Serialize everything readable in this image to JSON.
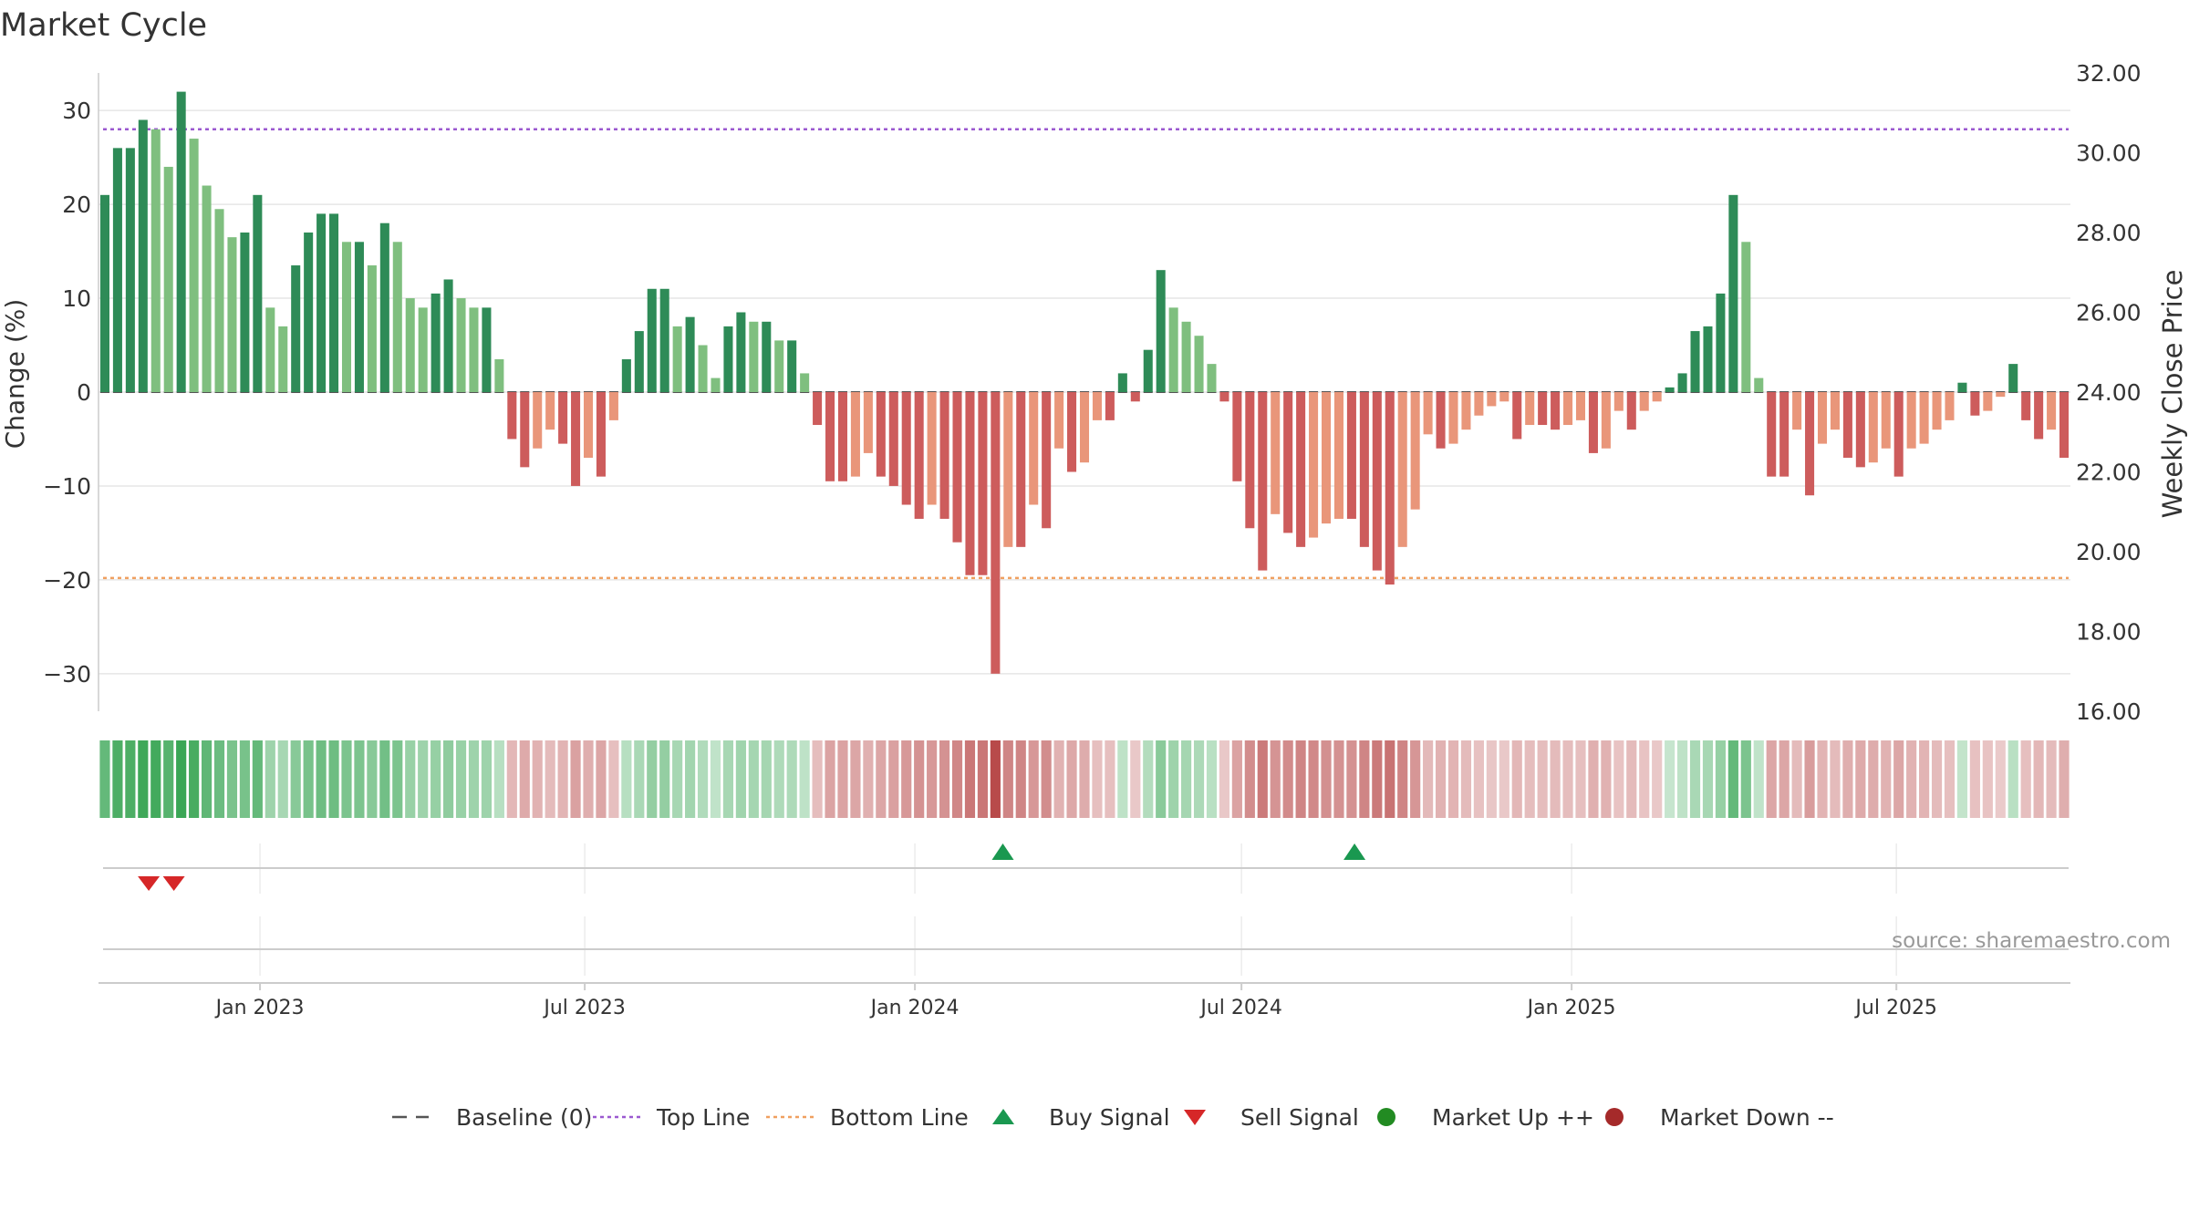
{
  "title": "Market Cycle",
  "source": "source: sharemaestro.com",
  "chart_data": {
    "type": "bar",
    "ylabel": "Change (%)",
    "y2label": "Weekly Close Price",
    "ylim": [
      -34,
      34
    ],
    "y2lim": [
      16,
      32
    ],
    "yticks": [
      30,
      20,
      10,
      0,
      -10,
      -20,
      -30
    ],
    "yticklabels": [
      "30",
      "20",
      "10",
      "0",
      "−10",
      "−20",
      "−30"
    ],
    "y2ticks": [
      32,
      30,
      28,
      26,
      24,
      22,
      20,
      18,
      16
    ],
    "y2ticklabels": [
      "32.00",
      "30.00",
      "28.00",
      "26.00",
      "24.00",
      "22.00",
      "20.00",
      "18.00",
      "16.00"
    ],
    "top_line": 28,
    "bottom_line": -19.8,
    "x_start": "2022-10-03",
    "x_end": "2025-10-06",
    "xticks": [
      {
        "date": "2023-01-01",
        "label": "Jan 2023"
      },
      {
        "date": "2023-07-01",
        "label": "Jul 2023"
      },
      {
        "date": "2024-01-01",
        "label": "Jan 2024"
      },
      {
        "date": "2024-07-01",
        "label": "Jul 2024"
      },
      {
        "date": "2025-01-01",
        "label": "Jan 2025"
      },
      {
        "date": "2025-07-01",
        "label": "Jul 2025"
      }
    ],
    "values": [
      21,
      26,
      26,
      29,
      28,
      24,
      32,
      27,
      22,
      19.5,
      16.5,
      17,
      21,
      9,
      7,
      13.5,
      17,
      19,
      19,
      16,
      16,
      13.5,
      18,
      16,
      10,
      9,
      10.5,
      12,
      10,
      9,
      9,
      3.5,
      -5,
      -8,
      -6,
      -4,
      -5.5,
      -10,
      -7,
      -9,
      -3,
      3.5,
      6.5,
      11,
      11,
      7,
      8,
      5,
      1.5,
      7,
      8.5,
      7.5,
      7.5,
      5.5,
      5.5,
      2,
      -3.5,
      -9.5,
      -9.5,
      -9,
      -6.5,
      -9,
      -10,
      -12,
      -13.5,
      -12,
      -13.5,
      -16,
      -19.5,
      -19.5,
      -30,
      -16.5,
      -16.5,
      -12,
      -14.5,
      -6,
      -8.5,
      -7.5,
      -3,
      -3,
      2,
      -1,
      4.5,
      13,
      9,
      7.5,
      6,
      3,
      -1,
      -9.5,
      -14.5,
      -19,
      -13,
      -15,
      -16.5,
      -15.5,
      -14,
      -13.5,
      -13.5,
      -16.5,
      -19,
      -20.5,
      -16.5,
      -12.5,
      -4.5,
      -6,
      -5.5,
      -4,
      -2.5,
      -1.5,
      -1,
      -5,
      -3.5,
      -3.5,
      -4,
      -3.5,
      -3,
      -6.5,
      -6,
      -2,
      -4,
      -2,
      -1,
      0.5,
      2,
      6.5,
      7,
      10.5,
      21,
      16,
      1.5,
      -9,
      -9,
      -4,
      -11,
      -5.5,
      -4,
      -7,
      -8,
      -7.5,
      -6,
      -9,
      -6,
      -5.5,
      -4,
      -3,
      1,
      -2.5,
      -2,
      -0.5,
      3,
      -3,
      -5,
      -4,
      -7
    ],
    "buy_signals": [
      {
        "date": "2024-02-19"
      },
      {
        "date": "2024-09-02"
      }
    ],
    "sell_signals": [
      {
        "date": "2022-10-31"
      },
      {
        "date": "2022-11-14"
      }
    ],
    "legend": [
      {
        "label": "Baseline (0)",
        "symbol": "dash",
        "color": "#555555"
      },
      {
        "label": "Top Line",
        "symbol": "dot",
        "color": "#9b59d0"
      },
      {
        "label": "Bottom Line",
        "symbol": "dot",
        "color": "#f0a060"
      },
      {
        "label": "Buy Signal",
        "symbol": "triangle-up",
        "color": "#1a9850"
      },
      {
        "label": "Sell Signal",
        "symbol": "triangle-down",
        "color": "#d62728"
      },
      {
        "label": "Market Up ++",
        "symbol": "circle",
        "color": "#228b22"
      },
      {
        "label": "Market Down --",
        "symbol": "circle",
        "color": "#a52a2a"
      }
    ],
    "legend_position": "bottom-center",
    "grid": true,
    "colors": {
      "strong_up": "#2e8b57",
      "weak_up": "#7fbf7f",
      "strong_down": "#cd5c5c",
      "weak_down": "#e9967a",
      "top_line": "#9b59d0",
      "bottom_line": "#f0a060",
      "buy": "#1a9850",
      "sell": "#d62728"
    }
  }
}
